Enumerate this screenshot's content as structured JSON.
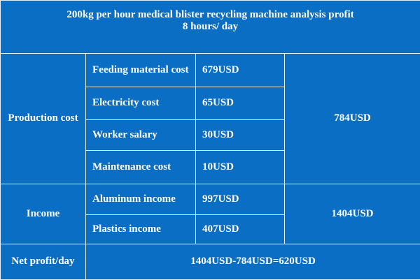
{
  "header": {
    "line1": "200kg per hour medical blister recycling machine analysis profit",
    "line2": "8 hours/ day"
  },
  "production": {
    "label": "Production cost",
    "items": [
      {
        "name": "Feeding material cost",
        "value": "679USD"
      },
      {
        "name": "Electricity cost",
        "value": "65USD"
      },
      {
        "name": "Worker salary",
        "value": "30USD"
      },
      {
        "name": "Maintenance cost",
        "value": "10USD"
      }
    ],
    "total": "784USD"
  },
  "income": {
    "label": "Income",
    "items": [
      {
        "name": "Aluminum  income",
        "value": "997USD"
      },
      {
        "name": "Plastics income",
        "value": "407USD"
      }
    ],
    "total": "1404USD"
  },
  "net": {
    "label": "Net profit/day",
    "value": "1404USD-784USD=620USD"
  },
  "colors": {
    "background": "#0a6fc4",
    "text": "#ffffff",
    "border": "#e8f1fb"
  }
}
